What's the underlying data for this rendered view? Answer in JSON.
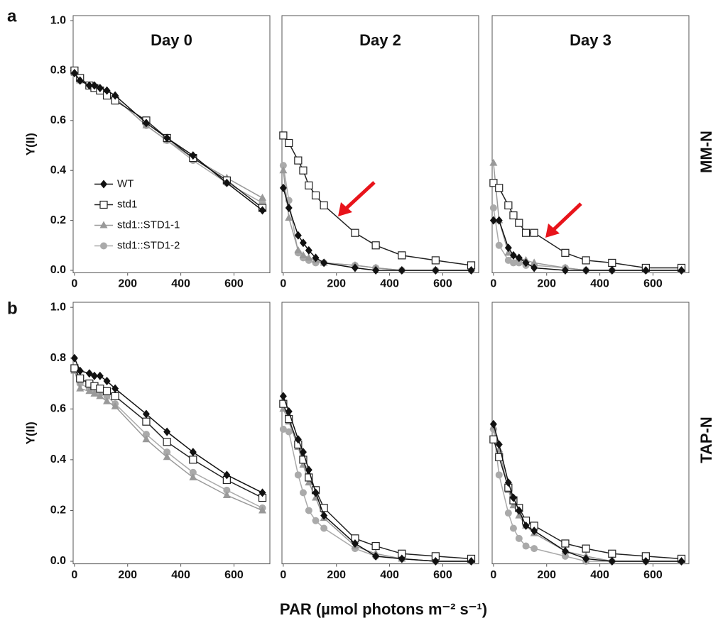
{
  "figure": {
    "row_labels": [
      "a",
      "b"
    ],
    "side_labels": [
      "MM-N",
      "TAP-N"
    ],
    "x_label": "PAR (µmol photons m⁻² s⁻¹)"
  },
  "chart_data": [
    {
      "type": "line",
      "title": "Day 0",
      "ylabel": "Y(II)",
      "x": [
        0,
        21,
        56,
        75,
        96,
        122,
        153,
        270,
        348,
        446,
        573,
        707
      ],
      "xlim": [
        -5,
        735
      ],
      "xticks": [
        0,
        200,
        400,
        600
      ],
      "ylim": [
        -0.01,
        1.02
      ],
      "yticks": [
        {
          "value": 0,
          "label": "0.0"
        },
        {
          "value": 0.2,
          "label": "0.2"
        },
        {
          "value": 0.4,
          "label": "0.4"
        },
        {
          "value": 0.6,
          "label": "0.6"
        },
        {
          "value": 0.8,
          "label": "0.8"
        },
        {
          "value": 1,
          "label": "1.0"
        }
      ],
      "legend": "lower-left",
      "series": [
        {
          "name": "WT",
          "color": "#111111",
          "marker": "diamond",
          "values": [
            0.79,
            0.76,
            0.74,
            0.74,
            0.73,
            0.72,
            0.7,
            0.59,
            0.53,
            0.46,
            0.35,
            0.24
          ]
        },
        {
          "name": "std1",
          "color": "#222222",
          "marker": "square",
          "values": [
            0.8,
            0.77,
            0.74,
            0.73,
            0.72,
            0.7,
            0.68,
            0.6,
            0.53,
            0.45,
            0.36,
            0.25
          ]
        },
        {
          "name": "std1::STD1-1",
          "color": "#999999",
          "marker": "triangle",
          "values": [
            0.79,
            0.76,
            0.74,
            0.73,
            0.72,
            0.7,
            0.69,
            0.58,
            0.52,
            0.45,
            0.37,
            0.29
          ]
        },
        {
          "name": "std1::STD1-2",
          "color": "#aaaaaa",
          "marker": "circle",
          "values": [
            0.79,
            0.76,
            0.74,
            0.73,
            0.72,
            0.7,
            0.69,
            0.58,
            0.52,
            0.44,
            0.35,
            0.27
          ]
        }
      ]
    },
    {
      "type": "line",
      "title": "Day 2",
      "x": [
        0,
        21,
        56,
        75,
        96,
        122,
        153,
        270,
        348,
        446,
        573,
        707
      ],
      "xlim": [
        -5,
        735
      ],
      "xticks": [
        0,
        200,
        400,
        600
      ],
      "ylim": [
        -0.01,
        1.02
      ],
      "series": [
        {
          "color": "#111111",
          "marker": "diamond",
          "values": [
            0.33,
            0.25,
            0.14,
            0.11,
            0.08,
            0.05,
            0.03,
            0.01,
            0,
            0,
            0,
            0
          ]
        },
        {
          "color": "#222222",
          "marker": "square",
          "values": [
            0.54,
            0.51,
            0.44,
            0.4,
            0.34,
            0.3,
            0.26,
            0.15,
            0.1,
            0.06,
            0.04,
            0.02
          ]
        },
        {
          "color": "#999999",
          "marker": "triangle",
          "values": [
            0.4,
            0.21,
            0.08,
            0.06,
            0.05,
            0.04,
            0.03,
            0.02,
            0.01,
            0,
            0,
            0
          ]
        },
        {
          "color": "#aaaaaa",
          "marker": "circle",
          "values": [
            0.42,
            0.28,
            0.07,
            0.05,
            0.04,
            0.03,
            0.03,
            0.02,
            0.01,
            0,
            0,
            0
          ]
        }
      ]
    },
    {
      "type": "line",
      "title": "Day 3",
      "x": [
        0,
        21,
        56,
        75,
        96,
        122,
        153,
        270,
        348,
        446,
        573,
        707
      ],
      "xlim": [
        -5,
        735
      ],
      "xticks": [
        0,
        200,
        400,
        600
      ],
      "ylim": [
        -0.01,
        1.02
      ],
      "series": [
        {
          "color": "#111111",
          "marker": "diamond",
          "values": [
            0.2,
            0.2,
            0.09,
            0.06,
            0.05,
            0.03,
            0.01,
            0,
            0,
            0,
            0,
            0
          ]
        },
        {
          "color": "#222222",
          "marker": "square",
          "values": [
            0.35,
            0.33,
            0.26,
            0.22,
            0.19,
            0.15,
            0.15,
            0.07,
            0.04,
            0.03,
            0.01,
            0.01
          ]
        },
        {
          "color": "#999999",
          "marker": "triangle",
          "values": [
            0.43,
            0.2,
            0.07,
            0.06,
            0.05,
            0.04,
            0.03,
            0.01,
            0,
            0,
            0,
            0
          ]
        },
        {
          "color": "#aaaaaa",
          "marker": "circle",
          "values": [
            0.25,
            0.1,
            0.04,
            0.03,
            0.03,
            0.02,
            0.02,
            0.01,
            0,
            0,
            0,
            0
          ]
        }
      ]
    },
    {
      "type": "line",
      "ylabel": "Y(II)",
      "x": [
        0,
        21,
        56,
        75,
        96,
        122,
        153,
        270,
        348,
        446,
        573,
        707
      ],
      "xlim": [
        -5,
        735
      ],
      "xticks": [
        0,
        200,
        400,
        600
      ],
      "ylim": [
        -0.01,
        1.02
      ],
      "yticks": [
        {
          "value": 0,
          "label": "0.0"
        },
        {
          "value": 0.2,
          "label": "0.2"
        },
        {
          "value": 0.4,
          "label": "0.4"
        },
        {
          "value": 0.6,
          "label": "0.6"
        },
        {
          "value": 0.8,
          "label": "0.8"
        },
        {
          "value": 1,
          "label": "1.0"
        }
      ],
      "series": [
        {
          "color": "#111111",
          "marker": "diamond",
          "values": [
            0.8,
            0.75,
            0.74,
            0.73,
            0.73,
            0.71,
            0.68,
            0.58,
            0.51,
            0.43,
            0.34,
            0.27
          ]
        },
        {
          "color": "#222222",
          "marker": "square",
          "values": [
            0.76,
            0.72,
            0.7,
            0.69,
            0.68,
            0.67,
            0.65,
            0.55,
            0.47,
            0.4,
            0.32,
            0.25
          ]
        },
        {
          "color": "#999999",
          "marker": "triangle",
          "values": [
            0.75,
            0.68,
            0.67,
            0.66,
            0.65,
            0.63,
            0.61,
            0.48,
            0.41,
            0.33,
            0.26,
            0.2
          ]
        },
        {
          "color": "#aaaaaa",
          "marker": "circle",
          "values": [
            0.76,
            0.7,
            0.68,
            0.67,
            0.66,
            0.65,
            0.62,
            0.5,
            0.43,
            0.35,
            0.28,
            0.21
          ]
        }
      ]
    },
    {
      "type": "line",
      "x": [
        0,
        21,
        56,
        75,
        96,
        122,
        153,
        270,
        348,
        446,
        573,
        707
      ],
      "xlim": [
        -5,
        735
      ],
      "xticks": [
        0,
        200,
        400,
        600
      ],
      "ylim": [
        -0.01,
        1.02
      ],
      "series": [
        {
          "color": "#111111",
          "marker": "diamond",
          "values": [
            0.65,
            0.59,
            0.48,
            0.43,
            0.36,
            0.27,
            0.18,
            0.07,
            0.02,
            0.01,
            0,
            0
          ]
        },
        {
          "color": "#222222",
          "marker": "square",
          "values": [
            0.62,
            0.56,
            0.46,
            0.4,
            0.33,
            0.28,
            0.21,
            0.09,
            0.06,
            0.03,
            0.02,
            0.01
          ]
        },
        {
          "color": "#999999",
          "marker": "triangle",
          "values": [
            0.6,
            0.55,
            0.45,
            0.38,
            0.31,
            0.25,
            0.17,
            0.06,
            0.03,
            0.01,
            0,
            0
          ]
        },
        {
          "color": "#aaaaaa",
          "marker": "circle",
          "values": [
            0.52,
            0.51,
            0.34,
            0.27,
            0.2,
            0.16,
            0.13,
            0.05,
            0.02,
            0.01,
            0,
            0
          ]
        }
      ]
    },
    {
      "type": "line",
      "x": [
        0,
        21,
        56,
        75,
        96,
        122,
        153,
        270,
        348,
        446,
        573,
        707
      ],
      "xlim": [
        -5,
        735
      ],
      "xticks": [
        0,
        200,
        400,
        600
      ],
      "ylim": [
        -0.01,
        1.02
      ],
      "series": [
        {
          "color": "#111111",
          "marker": "diamond",
          "values": [
            0.54,
            0.46,
            0.31,
            0.25,
            0.2,
            0.14,
            0.12,
            0.04,
            0.01,
            0,
            0,
            0
          ]
        },
        {
          "color": "#222222",
          "marker": "square",
          "values": [
            0.48,
            0.41,
            0.29,
            0.24,
            0.21,
            0.16,
            0.14,
            0.07,
            0.05,
            0.03,
            0.02,
            0.01
          ]
        },
        {
          "color": "#999999",
          "marker": "triangle",
          "values": [
            0.53,
            0.44,
            0.28,
            0.22,
            0.18,
            0.14,
            0.11,
            0.04,
            0.02,
            0,
            0,
            0
          ]
        },
        {
          "color": "#aaaaaa",
          "marker": "circle",
          "values": [
            0.52,
            0.34,
            0.19,
            0.13,
            0.09,
            0.06,
            0.05,
            0.02,
            0,
            0,
            0,
            0
          ]
        }
      ]
    }
  ]
}
